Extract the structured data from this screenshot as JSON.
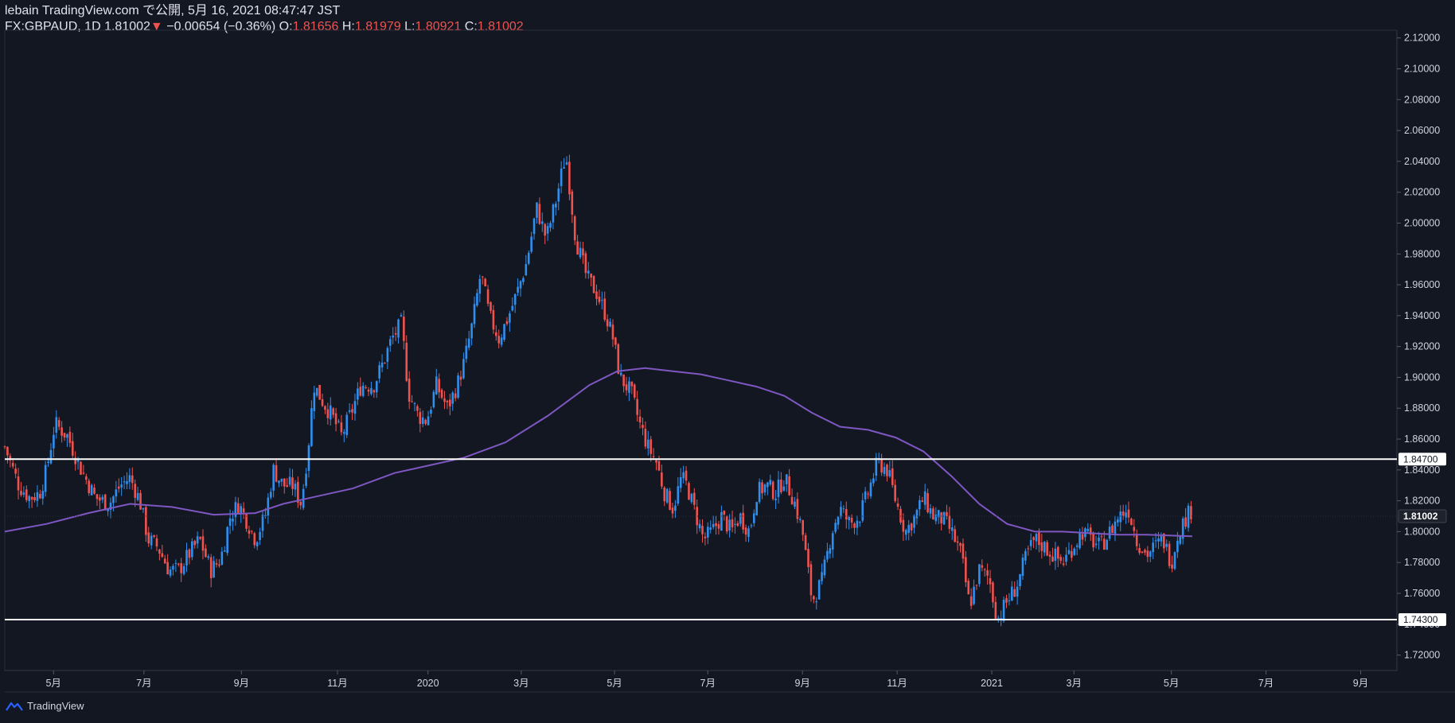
{
  "header": {
    "line1": "lebain TradingView.com で公開, 5月 16, 2021 08:47:47 JST",
    "symbol": "FX:GBPAUD, 1D",
    "last": "1.81002",
    "change_arrow": "▼",
    "change": "−0.00654 (−0.36%)",
    "o_label": "O:",
    "o_val": "1.81656",
    "h_label": "H:",
    "h_val": "1.81979",
    "l_label": "L:",
    "l_val": "1.80921",
    "c_label": "C:",
    "c_val": "1.81002"
  },
  "footer": {
    "brand": "TradingView",
    "logo_icon": "tradingview-logo-icon"
  },
  "colors": {
    "background": "#131722",
    "up": "#2f8fef",
    "down": "#ef5350",
    "ma": "#7e57c2",
    "hline": "#ffffff",
    "text": "#d1d4dc"
  },
  "chart_data": {
    "type": "candlestick",
    "symbol": "FX:GBPAUD",
    "interval": "1D",
    "y_range": [
      1.71,
      2.125
    ],
    "y_ticks": [
      "2.12000",
      "2.10000",
      "2.08000",
      "2.06000",
      "2.04000",
      "2.02000",
      "2.00000",
      "1.98000",
      "1.96000",
      "1.94000",
      "1.92000",
      "1.90000",
      "1.88000",
      "1.86000",
      "1.84000",
      "1.82000",
      "1.80000",
      "1.78000",
      "1.76000",
      "1.74000",
      "1.72000"
    ],
    "x_ticks": [
      {
        "label": "5月",
        "t": 0.035
      },
      {
        "label": "7月",
        "t": 0.1
      },
      {
        "label": "9月",
        "t": 0.17
      },
      {
        "label": "11月",
        "t": 0.239
      },
      {
        "label": "2020",
        "t": 0.304
      },
      {
        "label": "3月",
        "t": 0.371
      },
      {
        "label": "5月",
        "t": 0.438
      },
      {
        "label": "7月",
        "t": 0.505
      },
      {
        "label": "9月",
        "t": 0.573
      },
      {
        "label": "11月",
        "t": 0.641
      },
      {
        "label": "2021",
        "t": 0.709
      },
      {
        "label": "3月",
        "t": 0.768
      },
      {
        "label": "5月",
        "t": 0.838
      },
      {
        "label": "7月",
        "t": 0.906
      },
      {
        "label": "9月",
        "t": 0.974
      }
    ],
    "close_path": [
      [
        0.0,
        1.855
      ],
      [
        0.01,
        1.83
      ],
      [
        0.018,
        1.822
      ],
      [
        0.025,
        1.825
      ],
      [
        0.03,
        1.84
      ],
      [
        0.036,
        1.87
      ],
      [
        0.045,
        1.862
      ],
      [
        0.055,
        1.84
      ],
      [
        0.065,
        1.822
      ],
      [
        0.075,
        1.818
      ],
      [
        0.083,
        1.83
      ],
      [
        0.09,
        1.835
      ],
      [
        0.097,
        1.82
      ],
      [
        0.103,
        1.795
      ],
      [
        0.11,
        1.79
      ],
      [
        0.118,
        1.775
      ],
      [
        0.125,
        1.775
      ],
      [
        0.132,
        1.785
      ],
      [
        0.14,
        1.795
      ],
      [
        0.148,
        1.775
      ],
      [
        0.155,
        1.782
      ],
      [
        0.162,
        1.81
      ],
      [
        0.168,
        1.818
      ],
      [
        0.175,
        1.805
      ],
      [
        0.18,
        1.795
      ],
      [
        0.187,
        1.81
      ],
      [
        0.193,
        1.84
      ],
      [
        0.2,
        1.83
      ],
      [
        0.207,
        1.83
      ],
      [
        0.213,
        1.818
      ],
      [
        0.218,
        1.855
      ],
      [
        0.222,
        1.895
      ],
      [
        0.228,
        1.885
      ],
      [
        0.235,
        1.875
      ],
      [
        0.242,
        1.862
      ],
      [
        0.25,
        1.88
      ],
      [
        0.256,
        1.895
      ],
      [
        0.265,
        1.895
      ],
      [
        0.272,
        1.91
      ],
      [
        0.278,
        1.925
      ],
      [
        0.285,
        1.935
      ],
      [
        0.29,
        1.89
      ],
      [
        0.297,
        1.875
      ],
      [
        0.303,
        1.872
      ],
      [
        0.31,
        1.895
      ],
      [
        0.318,
        1.88
      ],
      [
        0.325,
        1.895
      ],
      [
        0.33,
        1.91
      ],
      [
        0.336,
        1.935
      ],
      [
        0.342,
        1.968
      ],
      [
        0.348,
        1.94
      ],
      [
        0.355,
        1.925
      ],
      [
        0.362,
        1.94
      ],
      [
        0.368,
        1.955
      ],
      [
        0.375,
        1.975
      ],
      [
        0.382,
        2.01
      ],
      [
        0.389,
        1.99
      ],
      [
        0.396,
        2.015
      ],
      [
        0.403,
        2.045
      ],
      [
        0.41,
        1.99
      ],
      [
        0.418,
        1.965
      ],
      [
        0.425,
        1.955
      ],
      [
        0.432,
        1.94
      ],
      [
        0.437,
        1.925
      ],
      [
        0.442,
        1.9
      ],
      [
        0.45,
        1.89
      ],
      [
        0.456,
        1.87
      ],
      [
        0.462,
        1.855
      ],
      [
        0.468,
        1.845
      ],
      [
        0.474,
        1.825
      ],
      [
        0.48,
        1.815
      ],
      [
        0.486,
        1.835
      ],
      [
        0.49,
        1.83
      ],
      [
        0.495,
        1.815
      ],
      [
        0.502,
        1.795
      ],
      [
        0.508,
        1.8
      ],
      [
        0.515,
        1.81
      ],
      [
        0.522,
        1.8
      ],
      [
        0.528,
        1.81
      ],
      [
        0.535,
        1.8
      ],
      [
        0.54,
        1.825
      ],
      [
        0.547,
        1.83
      ],
      [
        0.554,
        1.825
      ],
      [
        0.56,
        1.835
      ],
      [
        0.567,
        1.82
      ],
      [
        0.573,
        1.8
      ],
      [
        0.58,
        1.755
      ],
      [
        0.587,
        1.768
      ],
      [
        0.594,
        1.8
      ],
      [
        0.6,
        1.815
      ],
      [
        0.607,
        1.805
      ],
      [
        0.614,
        1.81
      ],
      [
        0.62,
        1.825
      ],
      [
        0.627,
        1.845
      ],
      [
        0.634,
        1.84
      ],
      [
        0.64,
        1.82
      ],
      [
        0.647,
        1.8
      ],
      [
        0.654,
        1.81
      ],
      [
        0.66,
        1.822
      ],
      [
        0.667,
        1.81
      ],
      [
        0.674,
        1.808
      ],
      [
        0.68,
        1.8
      ],
      [
        0.687,
        1.785
      ],
      [
        0.693,
        1.752
      ],
      [
        0.7,
        1.775
      ],
      [
        0.707,
        1.77
      ],
      [
        0.713,
        1.743
      ],
      [
        0.72,
        1.755
      ],
      [
        0.727,
        1.765
      ],
      [
        0.734,
        1.785
      ],
      [
        0.74,
        1.795
      ],
      [
        0.747,
        1.79
      ],
      [
        0.753,
        1.785
      ],
      [
        0.76,
        1.78
      ],
      [
        0.767,
        1.79
      ],
      [
        0.774,
        1.8
      ],
      [
        0.78,
        1.795
      ],
      [
        0.787,
        1.79
      ],
      [
        0.794,
        1.8
      ],
      [
        0.8,
        1.81
      ],
      [
        0.807,
        1.815
      ],
      [
        0.813,
        1.795
      ],
      [
        0.82,
        1.785
      ],
      [
        0.826,
        1.79
      ],
      [
        0.832,
        1.795
      ],
      [
        0.838,
        1.78
      ],
      [
        0.843,
        1.8
      ],
      [
        0.849,
        1.81
      ],
      [
        0.853,
        1.815
      ]
    ],
    "ma_path": [
      [
        0.0,
        1.8
      ],
      [
        0.03,
        1.805
      ],
      [
        0.06,
        1.812
      ],
      [
        0.09,
        1.818
      ],
      [
        0.12,
        1.816
      ],
      [
        0.15,
        1.811
      ],
      [
        0.18,
        1.812
      ],
      [
        0.2,
        1.818
      ],
      [
        0.22,
        1.822
      ],
      [
        0.25,
        1.828
      ],
      [
        0.28,
        1.838
      ],
      [
        0.3,
        1.842
      ],
      [
        0.33,
        1.848
      ],
      [
        0.36,
        1.858
      ],
      [
        0.39,
        1.875
      ],
      [
        0.42,
        1.895
      ],
      [
        0.44,
        1.904
      ],
      [
        0.46,
        1.906
      ],
      [
        0.48,
        1.904
      ],
      [
        0.5,
        1.902
      ],
      [
        0.52,
        1.898
      ],
      [
        0.54,
        1.894
      ],
      [
        0.56,
        1.888
      ],
      [
        0.58,
        1.877
      ],
      [
        0.6,
        1.868
      ],
      [
        0.62,
        1.866
      ],
      [
        0.64,
        1.861
      ],
      [
        0.66,
        1.852
      ],
      [
        0.68,
        1.836
      ],
      [
        0.7,
        1.818
      ],
      [
        0.72,
        1.805
      ],
      [
        0.74,
        1.8
      ],
      [
        0.76,
        1.8
      ],
      [
        0.78,
        1.799
      ],
      [
        0.8,
        1.798
      ],
      [
        0.82,
        1.798
      ],
      [
        0.853,
        1.797
      ]
    ],
    "hlines": [
      {
        "value": 1.847,
        "label": "1.84700"
      },
      {
        "value": 1.743,
        "label": "1.74300"
      }
    ],
    "last_price": {
      "value": 1.81002,
      "label": "1.81002"
    }
  }
}
